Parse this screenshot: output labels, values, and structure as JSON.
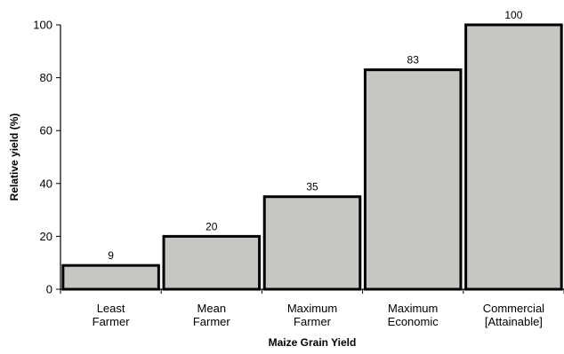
{
  "chart_data": {
    "type": "bar",
    "categories": [
      [
        "Least",
        "Farmer"
      ],
      [
        "Mean",
        "Farmer"
      ],
      [
        "Maximum",
        "Farmer"
      ],
      [
        "Maximum",
        "Economic"
      ],
      [
        "Commercial",
        "[Attainable]"
      ]
    ],
    "values": [
      9,
      20,
      35,
      83,
      100
    ],
    "data_labels": [
      "9",
      "20",
      "35",
      "83",
      "100"
    ],
    "xlabel": "Maize Grain Yield",
    "ylabel": "Relative yield (%)",
    "ylim": [
      0,
      100
    ],
    "yticks": [
      0,
      20,
      40,
      60,
      80,
      100
    ],
    "ytick_labels": [
      "0",
      "20",
      "40",
      "60",
      "80",
      "100"
    ],
    "grid": false,
    "legend": "none",
    "colors": {
      "bar_fill": "#c8c6c2",
      "bar_stroke": "#000000",
      "axis": "#000000"
    }
  }
}
